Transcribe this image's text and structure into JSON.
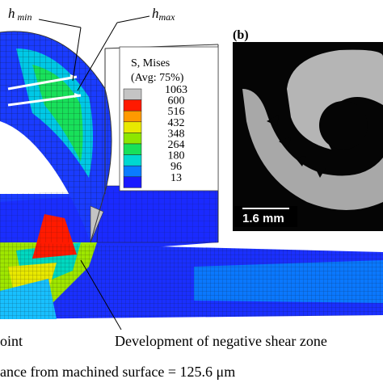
{
  "labels": {
    "h_min_main": "h",
    "h_min_sub": "min",
    "h_max_main": "h",
    "h_max_sub": "max",
    "panel_b": "(b)",
    "scale_bar": "1.6 mm",
    "left_cut": "oint",
    "annotation": "Development of negative shear zone",
    "caption": "ance from machined surface = 125.6 μm"
  },
  "legend": {
    "title": "S, Mises",
    "subtitle": "(Avg: 75%)",
    "entries": [
      {
        "value": 1063,
        "color": "#c4c4c4"
      },
      {
        "value": 600,
        "color": "#ff1a00"
      },
      {
        "value": 516,
        "color": "#ff9a00"
      },
      {
        "value": 432,
        "color": "#e8e800"
      },
      {
        "value": 348,
        "color": "#8ee600"
      },
      {
        "value": 264,
        "color": "#18e05a"
      },
      {
        "value": 180,
        "color": "#00d8d0"
      },
      {
        "value": 96,
        "color": "#0a7cff"
      },
      {
        "value": 13,
        "color": "#1a1aff"
      }
    ]
  }
}
